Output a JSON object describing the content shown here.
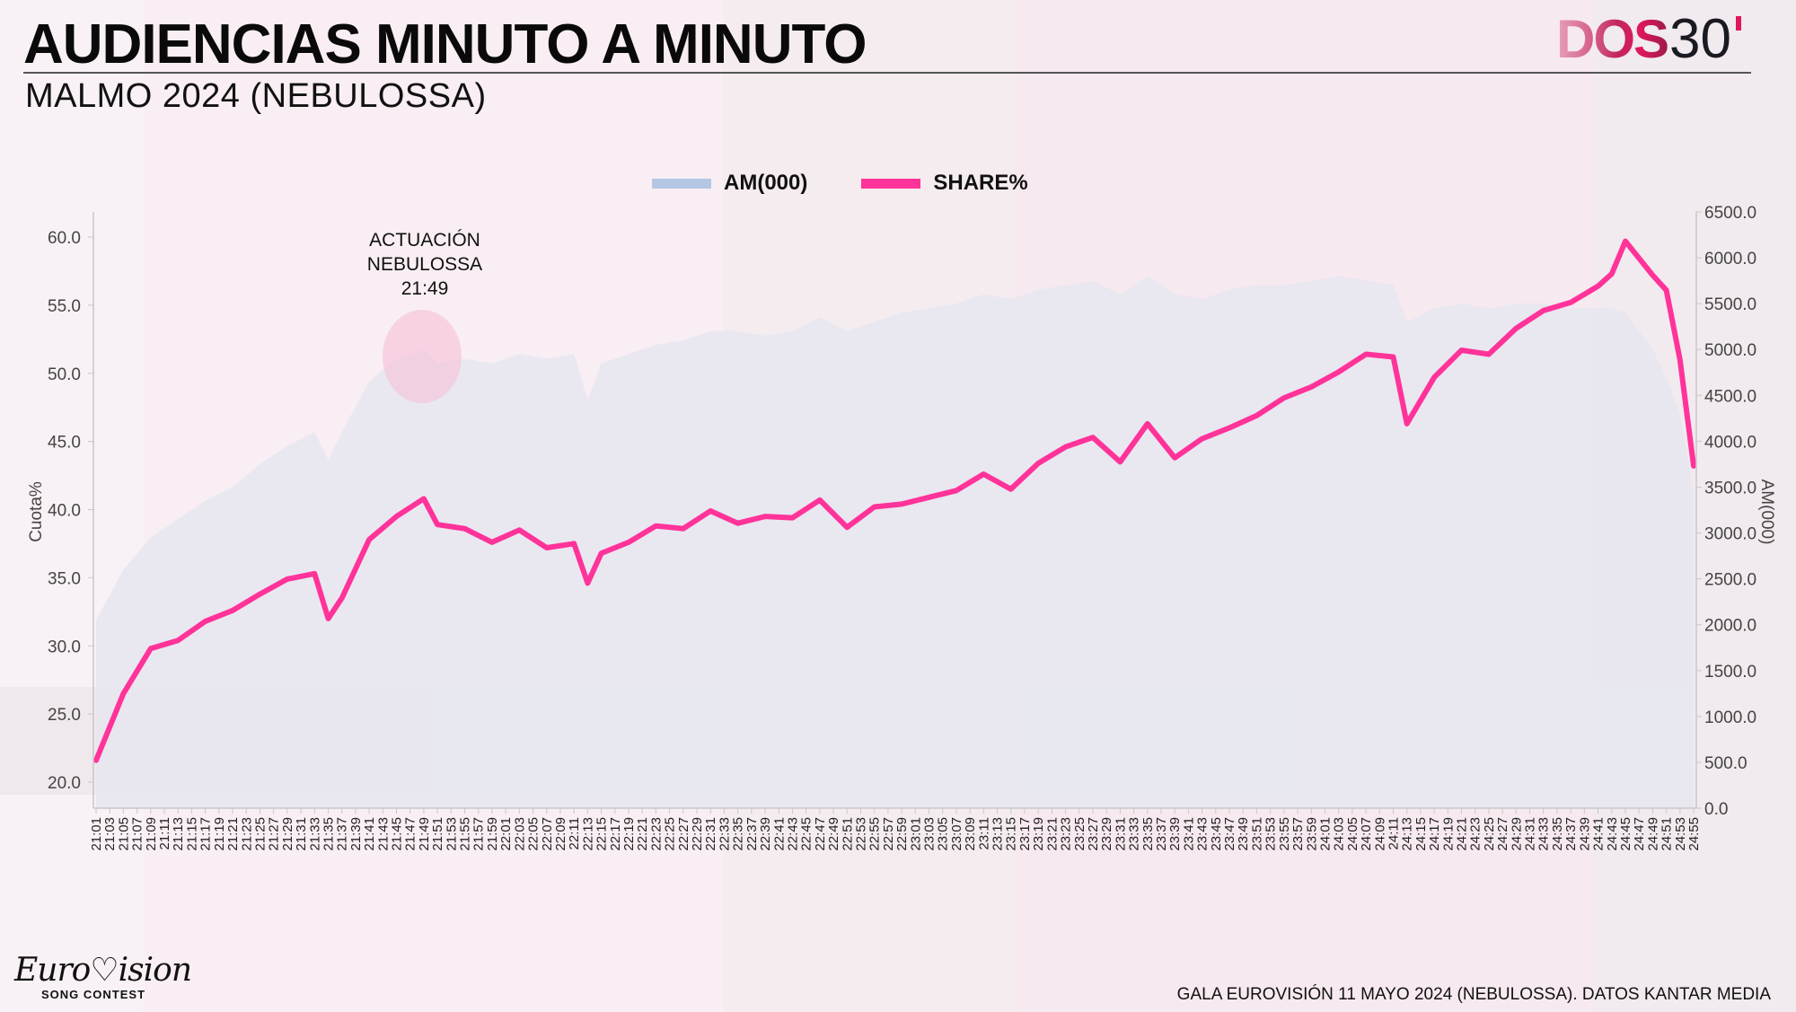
{
  "header": {
    "title": "AUDIENCIAS MINUTO A MINUTO",
    "subtitle": "MALMO 2024 (NEBULOSSA)",
    "brand_logo": {
      "text_main": "DOS",
      "text_number": "30",
      "text_mark": "'"
    }
  },
  "legend": {
    "items": [
      {
        "label": "AM(000)",
        "color": "#b3c6e3"
      },
      {
        "label": "SHARE%",
        "color": "#ff3399"
      }
    ]
  },
  "annotation": {
    "line1": "ACTUACIÓN",
    "line2": "NEBULOSSA",
    "line3": "21:49"
  },
  "footer": {
    "source": "GALA EUROVISIÓN 11 MAYO 2024 (NEBULOSSA). DATOS KANTAR MEDIA",
    "event_logo_main": "EUROVISION",
    "event_logo_sub": "SONG CONTEST"
  },
  "colors": {
    "share_line": "#ff3399",
    "am_area": "#e6e6f0",
    "highlight": "#f6c6dc"
  },
  "chart_data": {
    "type": "line",
    "title": "AUDIENCIAS MINUTO A MINUTO",
    "subtitle": "MALMO 2024 (NEBULOSSA)",
    "xlabel": "",
    "ylabel": "Cuota%",
    "y2label": "AM(000)",
    "ylim": [
      18.0,
      61.5
    ],
    "y2lim": [
      0,
      6500
    ],
    "yticks": [
      "20.0",
      "25.0",
      "30.0",
      "35.0",
      "40.0",
      "45.0",
      "50.0",
      "55.0",
      "60.0"
    ],
    "y2ticks": [
      "0.0",
      "500.0",
      "1000.0",
      "1500.0",
      "2000.0",
      "2500.0",
      "3000.0",
      "3500.0",
      "4000.0",
      "4500.0",
      "5000.0",
      "5500.0",
      "6000.0",
      "6500.0"
    ],
    "grid": false,
    "legend_position": "top",
    "x_tick_step_minutes": 2,
    "x_start": "21:01",
    "x_end": "24:55",
    "annotations": [
      {
        "x": "21:49",
        "text": "ACTUACIÓN NEBULOSSA 21:49"
      }
    ],
    "x": [
      "21:01",
      "21:05",
      "21:09",
      "21:13",
      "21:17",
      "21:21",
      "21:25",
      "21:29",
      "21:33",
      "21:35",
      "21:37",
      "21:41",
      "21:45",
      "21:49",
      "21:51",
      "21:55",
      "21:59",
      "22:03",
      "22:07",
      "22:11",
      "22:13",
      "22:15",
      "22:19",
      "22:23",
      "22:27",
      "22:31",
      "22:35",
      "22:39",
      "22:43",
      "22:47",
      "22:51",
      "22:55",
      "22:59",
      "23:03",
      "23:07",
      "23:11",
      "23:15",
      "23:19",
      "23:23",
      "23:27",
      "23:31",
      "23:35",
      "23:39",
      "23:43",
      "23:47",
      "23:51",
      "23:55",
      "23:59",
      "24:03",
      "24:07",
      "24:11",
      "24:13",
      "24:17",
      "24:21",
      "24:25",
      "24:29",
      "24:33",
      "24:37",
      "24:41",
      "24:43",
      "24:45",
      "24:49",
      "24:51",
      "24:53",
      "24:55"
    ],
    "series": [
      {
        "name": "SHARE%",
        "axis": "left",
        "color": "#ff3399",
        "values": [
          21.6,
          26.5,
          29.8,
          30.4,
          31.8,
          32.6,
          33.8,
          34.9,
          35.3,
          32.0,
          33.5,
          37.8,
          39.5,
          40.8,
          38.9,
          38.6,
          37.6,
          38.5,
          37.2,
          37.5,
          34.6,
          36.8,
          37.6,
          38.8,
          38.6,
          39.9,
          39.0,
          39.5,
          39.4,
          40.7,
          38.7,
          40.2,
          40.4,
          40.9,
          41.4,
          42.6,
          41.5,
          43.4,
          44.6,
          45.3,
          43.5,
          46.3,
          43.8,
          45.2,
          46.0,
          46.9,
          48.2,
          49.0,
          50.1,
          51.4,
          51.2,
          46.3,
          49.7,
          51.7,
          51.4,
          53.3,
          54.6,
          55.2,
          56.4,
          57.3,
          59.7,
          57.2,
          56.1,
          51.0,
          43.2
        ]
      },
      {
        "name": "AM(000)",
        "axis": "right",
        "color": "#b3c6e3",
        "values": [
          2050,
          2600,
          2950,
          3150,
          3350,
          3500,
          3750,
          3950,
          4100,
          3800,
          4100,
          4650,
          4900,
          5000,
          4850,
          4900,
          4850,
          4950,
          4900,
          4950,
          4450,
          4850,
          4950,
          5050,
          5100,
          5200,
          5200,
          5150,
          5200,
          5350,
          5200,
          5300,
          5400,
          5450,
          5500,
          5600,
          5550,
          5650,
          5700,
          5750,
          5600,
          5800,
          5600,
          5550,
          5650,
          5700,
          5700,
          5750,
          5800,
          5750,
          5700,
          5300,
          5450,
          5500,
          5450,
          5500,
          5500,
          5450,
          5450,
          5450,
          5400,
          5000,
          4700,
          4300,
          3450
        ]
      }
    ]
  }
}
